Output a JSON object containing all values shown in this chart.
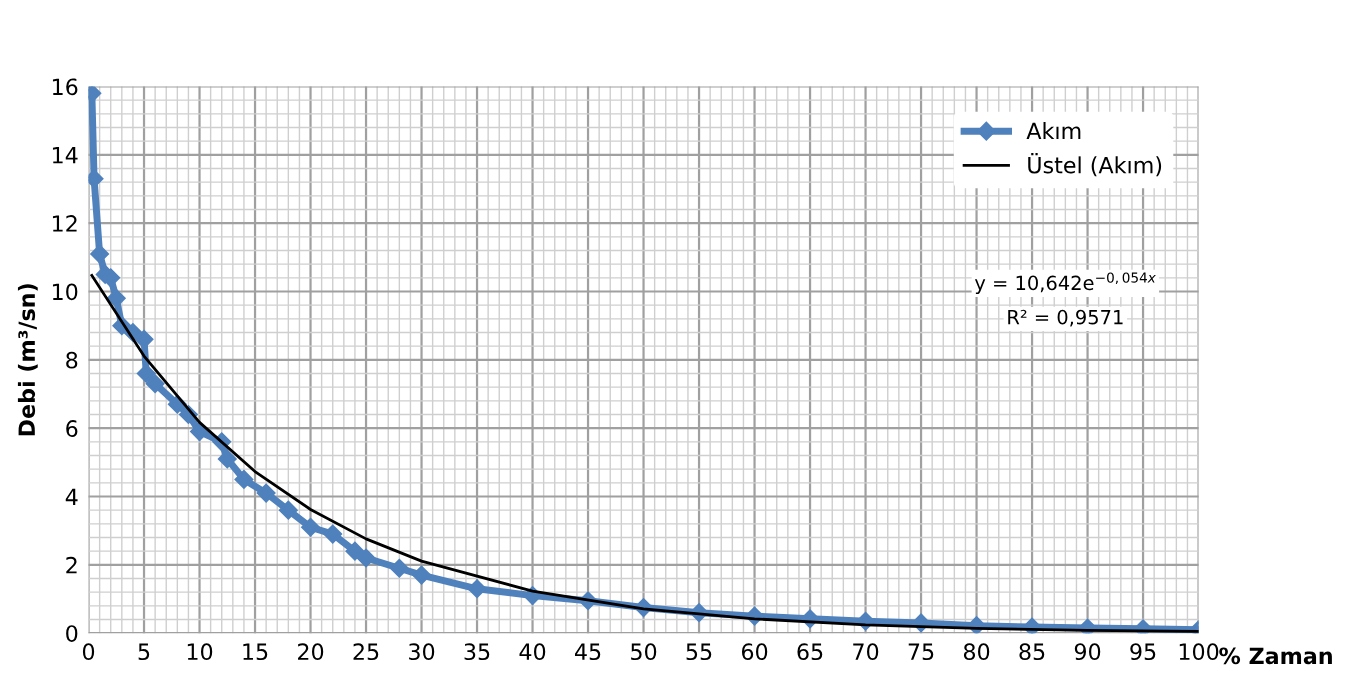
{
  "chart_data": {
    "type": "line",
    "xlabel": "% Zaman",
    "ylabel": "Debi (m³/sn)",
    "xlim": [
      0,
      100
    ],
    "ylim": [
      0,
      16
    ],
    "xticks": [
      0,
      5,
      10,
      15,
      20,
      25,
      30,
      35,
      40,
      45,
      50,
      55,
      60,
      65,
      70,
      75,
      80,
      85,
      90,
      95,
      100
    ],
    "yticks": [
      0,
      2,
      4,
      6,
      8,
      10,
      12,
      14,
      16
    ],
    "grid": true,
    "legend": "top right",
    "marker": "diamond",
    "line_style": "solid",
    "series": [
      {
        "name": "Akım",
        "color": "#4f81bd",
        "x": [
          0.3,
          0.5,
          1,
          1.5,
          2,
          2.5,
          3,
          4,
          5,
          5.2,
          6,
          8,
          9,
          10,
          12,
          12.5,
          14,
          16,
          18,
          20,
          22,
          24,
          25,
          28,
          30,
          35,
          40,
          45,
          50,
          55,
          60,
          65,
          70,
          75,
          80,
          85,
          90,
          95,
          100
        ],
        "values": [
          15.8,
          13.3,
          11.1,
          10.5,
          10.4,
          9.8,
          9.0,
          8.8,
          8.6,
          7.6,
          7.3,
          6.7,
          6.4,
          5.9,
          5.6,
          5.1,
          4.5,
          4.1,
          3.6,
          3.1,
          2.9,
          2.4,
          2.2,
          1.9,
          1.7,
          1.3,
          1.1,
          0.95,
          0.75,
          0.6,
          0.5,
          0.42,
          0.35,
          0.3,
          0.22,
          0.18,
          0.15,
          0.13,
          0.1
        ]
      },
      {
        "name": "Üstel (Akım)",
        "color": "#000000",
        "marker": "none",
        "x": [
          0.3,
          5,
          10,
          15,
          20,
          25,
          30,
          40,
          50,
          60,
          70,
          80,
          90,
          100
        ],
        "values": [
          10.47,
          8.11,
          6.17,
          4.73,
          3.62,
          2.76,
          2.11,
          1.23,
          0.71,
          0.42,
          0.24,
          0.14,
          0.08,
          0.05
        ]
      }
    ],
    "annotations": [
      "y = 10,642e$^{−0,054x}$",
      "R² = 0,9571"
    ]
  }
}
